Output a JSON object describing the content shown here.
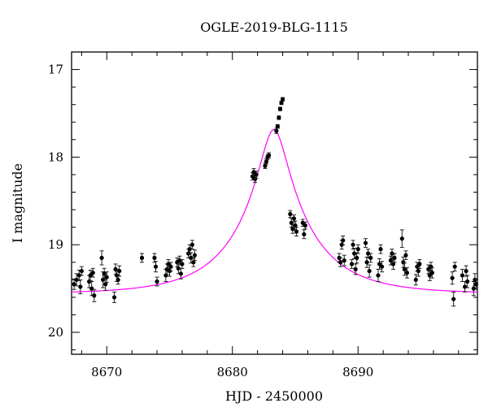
{
  "chart_data": {
    "type": "scatter",
    "title": "OGLE-2019-BLG-1115",
    "xlabel": "HJD - 2450000",
    "ylabel": "I magnitude",
    "xlim": [
      8667.2,
      8699.5
    ],
    "ylim": [
      20.25,
      16.8
    ],
    "y_inverted": true,
    "grid": false,
    "x_ticks": [
      "8670",
      "8680",
      "8690"
    ],
    "y_ticks": [
      "17",
      "18",
      "19",
      "20"
    ],
    "model_color": "#ff00ff",
    "model": {
      "t0": 8683.3,
      "u0": 0.18,
      "tE": 5.6,
      "baseline_mag": 19.56
    },
    "series": [
      {
        "points": [
          [
            8667.4,
            19.45,
            0.06
          ],
          [
            8667.6,
            19.4,
            0.07
          ],
          [
            8667.8,
            19.35,
            0.06
          ],
          [
            8667.9,
            19.48,
            0.08
          ],
          [
            8668.0,
            19.3,
            0.05
          ],
          [
            8668.6,
            19.42,
            0.07
          ],
          [
            8668.7,
            19.35,
            0.06
          ],
          [
            8668.8,
            19.5,
            0.08
          ],
          [
            8668.9,
            19.32,
            0.05
          ],
          [
            8669.0,
            19.58,
            0.07
          ],
          [
            8669.6,
            19.15,
            0.08
          ],
          [
            8669.7,
            19.4,
            0.09
          ],
          [
            8669.8,
            19.33,
            0.06
          ],
          [
            8669.9,
            19.45,
            0.07
          ],
          [
            8670.0,
            19.37,
            0.06
          ],
          [
            8670.6,
            19.6,
            0.06
          ],
          [
            8670.7,
            19.28,
            0.06
          ],
          [
            8670.8,
            19.35,
            0.07
          ],
          [
            8670.9,
            19.4,
            0.05
          ],
          [
            8671.0,
            19.3,
            0.06
          ],
          [
            8672.8,
            19.15,
            0.05
          ],
          [
            8673.8,
            19.15,
            0.05
          ],
          [
            8673.9,
            19.25,
            0.06
          ],
          [
            8674.0,
            19.42,
            0.05
          ],
          [
            8674.7,
            19.35,
            0.07
          ],
          [
            8674.8,
            19.28,
            0.06
          ],
          [
            8674.9,
            19.22,
            0.05
          ],
          [
            8675.0,
            19.3,
            0.06
          ],
          [
            8675.1,
            19.25,
            0.05
          ],
          [
            8675.6,
            19.2,
            0.05
          ],
          [
            8675.7,
            19.27,
            0.06
          ],
          [
            8675.8,
            19.18,
            0.05
          ],
          [
            8675.9,
            19.33,
            0.06
          ],
          [
            8676.0,
            19.22,
            0.05
          ],
          [
            8676.5,
            19.1,
            0.05
          ],
          [
            8676.6,
            19.05,
            0.05
          ],
          [
            8676.7,
            19.15,
            0.06
          ],
          [
            8676.8,
            19.0,
            0.05
          ],
          [
            8676.9,
            19.2,
            0.05
          ],
          [
            8677.0,
            19.12,
            0.06
          ],
          [
            8681.6,
            18.22,
            0.04
          ],
          [
            8681.7,
            18.17,
            0.04
          ],
          [
            8681.8,
            18.25,
            0.04
          ],
          [
            8681.9,
            18.2,
            0.04
          ],
          [
            8682.6,
            18.1,
            0.03
          ],
          [
            8682.7,
            18.05,
            0.03
          ],
          [
            8682.8,
            18.0,
            0.03
          ],
          [
            8682.9,
            17.98,
            0.03
          ],
          [
            8683.5,
            17.7,
            0.03
          ],
          [
            8683.6,
            17.65,
            0.02
          ],
          [
            8683.7,
            17.55,
            0.02
          ],
          [
            8683.8,
            17.45,
            0.02
          ],
          [
            8683.9,
            17.38,
            0.02
          ],
          [
            8684.0,
            17.34,
            0.02
          ],
          [
            8684.6,
            18.65,
            0.04
          ],
          [
            8684.7,
            18.75,
            0.05
          ],
          [
            8684.8,
            18.82,
            0.05
          ],
          [
            8684.9,
            18.7,
            0.04
          ],
          [
            8685.0,
            18.78,
            0.05
          ],
          [
            8685.1,
            18.85,
            0.05
          ],
          [
            8685.6,
            18.75,
            0.04
          ],
          [
            8685.7,
            18.88,
            0.05
          ],
          [
            8685.8,
            18.78,
            0.04
          ],
          [
            8688.5,
            19.15,
            0.05
          ],
          [
            8688.6,
            19.2,
            0.05
          ],
          [
            8688.7,
            19.0,
            0.05
          ],
          [
            8688.8,
            18.95,
            0.05
          ],
          [
            8688.9,
            19.18,
            0.06
          ],
          [
            8689.5,
            19.22,
            0.05
          ],
          [
            8689.6,
            19.0,
            0.05
          ],
          [
            8689.7,
            19.1,
            0.06
          ],
          [
            8689.8,
            19.28,
            0.06
          ],
          [
            8689.9,
            19.15,
            0.06
          ],
          [
            8690.0,
            19.05,
            0.05
          ],
          [
            8690.6,
            18.98,
            0.05
          ],
          [
            8690.7,
            19.2,
            0.06
          ],
          [
            8690.8,
            19.1,
            0.05
          ],
          [
            8690.9,
            19.3,
            0.07
          ],
          [
            8691.0,
            19.15,
            0.05
          ],
          [
            8691.6,
            19.35,
            0.07
          ],
          [
            8691.7,
            19.22,
            0.06
          ],
          [
            8691.8,
            19.05,
            0.05
          ],
          [
            8691.9,
            19.25,
            0.06
          ],
          [
            8692.6,
            19.18,
            0.05
          ],
          [
            8692.7,
            19.1,
            0.05
          ],
          [
            8692.8,
            19.22,
            0.06
          ],
          [
            8692.9,
            19.15,
            0.05
          ],
          [
            8693.5,
            18.93,
            0.1
          ],
          [
            8693.6,
            19.2,
            0.06
          ],
          [
            8693.7,
            19.28,
            0.07
          ],
          [
            8693.8,
            19.12,
            0.05
          ],
          [
            8693.9,
            19.32,
            0.06
          ],
          [
            8694.6,
            19.4,
            0.06
          ],
          [
            8694.7,
            19.25,
            0.05
          ],
          [
            8694.8,
            19.3,
            0.06
          ],
          [
            8694.9,
            19.22,
            0.05
          ],
          [
            8695.6,
            19.28,
            0.05
          ],
          [
            8695.7,
            19.35,
            0.06
          ],
          [
            8695.8,
            19.25,
            0.05
          ],
          [
            8695.9,
            19.32,
            0.06
          ],
          [
            8697.5,
            19.38,
            0.07
          ],
          [
            8697.6,
            19.62,
            0.08
          ],
          [
            8697.7,
            19.25,
            0.05
          ],
          [
            8698.3,
            19.35,
            0.07
          ],
          [
            8698.5,
            19.48,
            0.06
          ],
          [
            8698.6,
            19.3,
            0.06
          ],
          [
            8698.7,
            19.42,
            0.07
          ],
          [
            8699.2,
            19.5,
            0.08
          ],
          [
            8699.3,
            19.4,
            0.07
          ],
          [
            8699.4,
            19.45,
            0.06
          ]
        ]
      }
    ]
  }
}
